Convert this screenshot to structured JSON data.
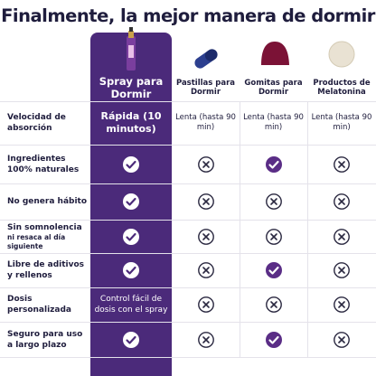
{
  "header": {
    "title": "Finalmente, la mejor manera de dormir"
  },
  "table": {
    "columns": [
      "Spray para Dormir",
      "Pastillas para Dormir",
      "Gomitas para Dormir",
      "Productos de Melatonina"
    ],
    "rows": [
      {
        "label": [
          "Velocidad de absorción"
        ],
        "cells": [
          "Rápida (10 minutos)",
          "Lenta (hasta 90 min)",
          "Lenta (hasta 90 min)",
          "Lenta (hasta 90 min)"
        ]
      },
      {
        "label": [
          "Ingredientes 100% naturales"
        ],
        "cells": [
          null,
          null,
          null,
          null
        ]
      },
      {
        "label": [
          "No genera hábito"
        ],
        "cells": [
          null,
          null,
          null,
          null
        ]
      },
      {
        "label": [
          "Sin somnolencia",
          "ni resaca al día siguiente"
        ],
        "cells": [
          null,
          null,
          null,
          null
        ]
      },
      {
        "label": [
          "Libre de aditivos y rellenos"
        ],
        "cells": [
          null,
          null,
          null,
          null
        ]
      },
      {
        "label": [
          "Dosis personalizada"
        ],
        "cells": [
          "Control fácil de dosis con el spray",
          null,
          null,
          null
        ]
      },
      {
        "label": [
          "Seguro para uso a largo plazo"
        ],
        "cells": [
          null,
          null,
          null,
          null
        ]
      }
    ]
  }
}
